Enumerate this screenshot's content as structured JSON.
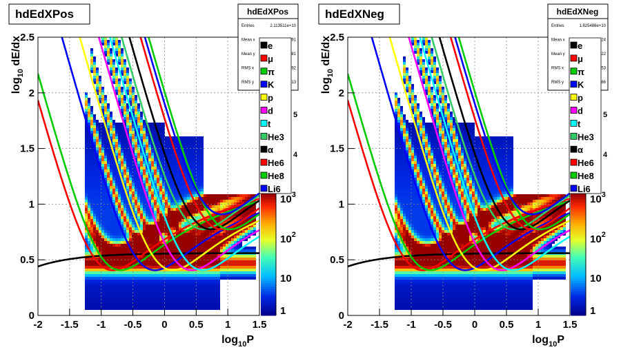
{
  "chart_data": [
    {
      "type": "heatmap",
      "title": "hdEdXPos",
      "xlabel_main": "log",
      "xlabel_sub": "10",
      "xlabel_tail": "P",
      "ylabel_main": "log",
      "ylabel_sub": "10",
      "ylabel_tail": " dE/dx",
      "xlim": [
        -2,
        1.5
      ],
      "ylim": [
        0,
        2.5
      ],
      "xticks": [
        "-2",
        "-1.5",
        "-1",
        "-0.5",
        "0",
        "0.5",
        "1",
        "1.5"
      ],
      "yticks": [
        "0",
        "0.5",
        "1",
        "1.5",
        "2",
        "2.5"
      ],
      "grid": true,
      "color_scale": "log",
      "colorbar_ticks": [
        "1",
        "10",
        "10",
        "10"
      ],
      "colorbar_exps": [
        "",
        "",
        "2",
        "3"
      ],
      "colorbar_partial": [
        "4",
        "5"
      ],
      "stats": {
        "name": "hdEdXPos",
        "rows": [
          {
            "label": "Entries",
            "value": "2.113511e+10"
          },
          {
            "label": "Mean x",
            "value": "91"
          },
          {
            "label": "Mean y",
            "value": "81"
          },
          {
            "label": "RMS x",
            "value": "92"
          },
          {
            "label": "RMS y",
            "value": "13"
          }
        ]
      },
      "legend": [
        {
          "label": "e",
          "color": "#000000",
          "partial": true
        },
        {
          "label": "μ",
          "color": "#ff0000",
          "partial": true
        },
        {
          "label": "π",
          "color": "#00cc00"
        },
        {
          "label": "K",
          "color": "#0000ff"
        },
        {
          "label": "p",
          "color": "#ffff00"
        },
        {
          "label": "d",
          "color": "#ff00ff"
        },
        {
          "label": "t",
          "color": "#00ffff"
        },
        {
          "label": "He3",
          "color": "#33cc66"
        },
        {
          "label": "α",
          "color": "#000000"
        },
        {
          "label": "He6",
          "color": "#ff0000"
        },
        {
          "label": "He8",
          "color": "#00cc00"
        },
        {
          "label": "Li6",
          "color": "#0000ff"
        }
      ]
    },
    {
      "type": "heatmap",
      "title": "hdEdXNeg",
      "xlabel_main": "log",
      "xlabel_sub": "10",
      "xlabel_tail": "P",
      "ylabel_main": "log",
      "ylabel_sub": "10",
      "ylabel_tail": " dE/dx",
      "xlim": [
        -2,
        1.5
      ],
      "ylim": [
        0,
        2.5
      ],
      "xticks": [
        "-2",
        "-1.5",
        "-1",
        "-0.5",
        "0",
        "0.5",
        "1",
        "1.5"
      ],
      "yticks": [
        "0",
        "0.5",
        "1",
        "1.5",
        "2",
        "2.5"
      ],
      "grid": true,
      "color_scale": "log",
      "colorbar_ticks": [
        "1",
        "10",
        "10",
        "10"
      ],
      "colorbar_exps": [
        "",
        "",
        "2",
        "3"
      ],
      "colorbar_partial": [
        "4",
        "5"
      ],
      "stats": {
        "name": "hdEdXNeg",
        "rows": [
          {
            "label": "Entries",
            "value": "1.825486e+10"
          },
          {
            "label": "Mean x",
            "value": "24"
          },
          {
            "label": "Mean y",
            "value": "22"
          },
          {
            "label": "RMS x",
            "value": "53"
          },
          {
            "label": "RMS y",
            "value": "86"
          }
        ]
      },
      "legend": [
        {
          "label": "e",
          "color": "#000000",
          "partial": true
        },
        {
          "label": "μ",
          "color": "#ff0000",
          "partial": true
        },
        {
          "label": "π",
          "color": "#00cc00"
        },
        {
          "label": "K",
          "color": "#0000ff"
        },
        {
          "label": "p",
          "color": "#ffff00"
        },
        {
          "label": "d",
          "color": "#ff00ff"
        },
        {
          "label": "t",
          "color": "#00ffff"
        },
        {
          "label": "He3",
          "color": "#33cc66"
        },
        {
          "label": "α",
          "color": "#000000"
        },
        {
          "label": "He6",
          "color": "#ff0000"
        },
        {
          "label": "He8",
          "color": "#00cc00"
        },
        {
          "label": "Li6",
          "color": "#0000ff"
        }
      ]
    }
  ]
}
